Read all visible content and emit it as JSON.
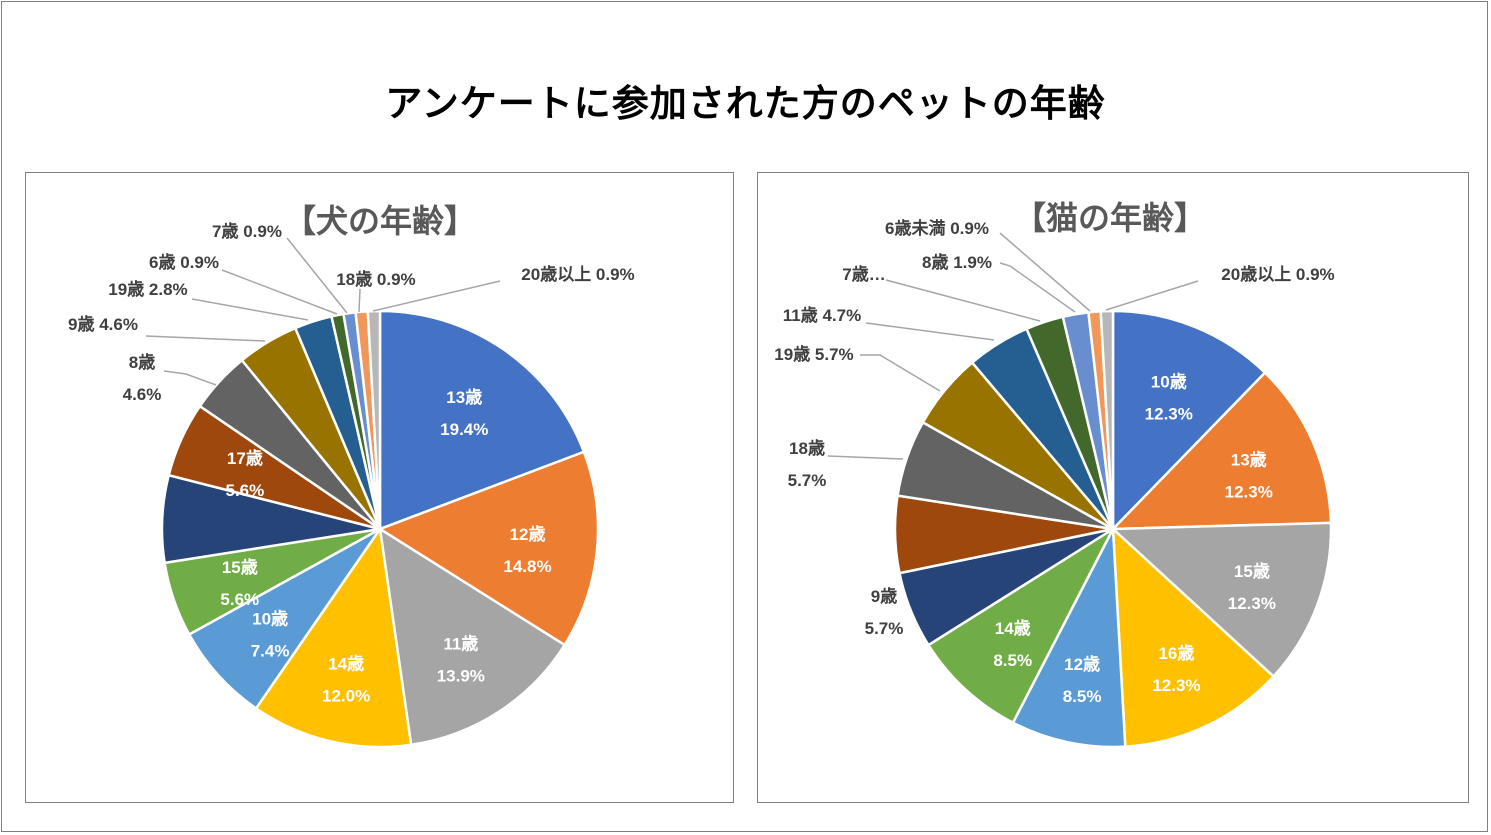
{
  "title": "アンケートに参加された方のペットの年齢",
  "chart_data": [
    {
      "type": "pie",
      "title": "【犬の年齢】",
      "slices": [
        {
          "label": "13歳",
          "value": 19.4,
          "value_label": "19.4%",
          "color": "#4472C4"
        },
        {
          "label": "12歳",
          "value": 14.8,
          "value_label": "14.8%",
          "color": "#ED7D31"
        },
        {
          "label": "11歳",
          "value": 13.9,
          "value_label": "13.9%",
          "color": "#A5A5A5"
        },
        {
          "label": "14歳",
          "value": 12.0,
          "value_label": "12.0%",
          "color": "#FFC000"
        },
        {
          "label": "10歳",
          "value": 7.4,
          "value_label": "7.4%",
          "color": "#5B9BD5"
        },
        {
          "label": "15歳",
          "value": 5.6,
          "value_label": "5.6%",
          "color": "#70AD47"
        },
        {
          "label": "",
          "value": 6.5,
          "value_label": "",
          "color": "#264478"
        },
        {
          "label": "17歳",
          "value": 5.6,
          "value_label": "5.6%",
          "color": "#9E480E"
        },
        {
          "label": "8歳",
          "value": 4.6,
          "value_label": "4.6%",
          "color": "#636363"
        },
        {
          "label": "9歳",
          "value": 4.6,
          "value_label": "4.6%",
          "color": "#997300"
        },
        {
          "label": "19歳",
          "value": 2.8,
          "value_label": "2.8%",
          "color": "#255E91"
        },
        {
          "label": "6歳",
          "value": 0.9,
          "value_label": "0.9%",
          "color": "#43682B"
        },
        {
          "label": "7歳",
          "value": 0.9,
          "value_label": "0.9%",
          "color": "#698ED0"
        },
        {
          "label": "18歳",
          "value": 0.9,
          "value_label": "0.9%",
          "color": "#F1975A"
        },
        {
          "label": "20歳以上",
          "value": 0.9,
          "value_label": "0.9%",
          "color": "#B7B7B7"
        }
      ]
    },
    {
      "type": "pie",
      "title": "【猫の年齢】",
      "slices": [
        {
          "label": "10歳",
          "value": 12.3,
          "value_label": "12.3%",
          "color": "#4472C4"
        },
        {
          "label": "13歳",
          "value": 12.3,
          "value_label": "12.3%",
          "color": "#ED7D31"
        },
        {
          "label": "15歳",
          "value": 12.3,
          "value_label": "12.3%",
          "color": "#A5A5A5"
        },
        {
          "label": "16歳",
          "value": 12.3,
          "value_label": "12.3%",
          "color": "#FFC000"
        },
        {
          "label": "12歳",
          "value": 8.5,
          "value_label": "8.5%",
          "color": "#5B9BD5"
        },
        {
          "label": "14歳",
          "value": 8.5,
          "value_label": "8.5%",
          "color": "#70AD47"
        },
        {
          "label": "9歳",
          "value": 5.7,
          "value_label": "5.7%",
          "color": "#264478"
        },
        {
          "label": "",
          "value": 5.7,
          "value_label": "",
          "color": "#9E480E"
        },
        {
          "label": "18歳",
          "value": 5.7,
          "value_label": "5.7%",
          "color": "#636363"
        },
        {
          "label": "19歳",
          "value": 5.7,
          "value_label": "5.7%",
          "color": "#997300"
        },
        {
          "label": "11歳",
          "value": 4.7,
          "value_label": "4.7%",
          "color": "#255E91"
        },
        {
          "label": "7歳…",
          "value": 2.8,
          "value_label": "",
          "color": "#43682B"
        },
        {
          "label": "8歳",
          "value": 1.9,
          "value_label": "1.9%",
          "color": "#698ED0"
        },
        {
          "label": "6歳未満",
          "value": 0.9,
          "value_label": "0.9%",
          "color": "#F1975A"
        },
        {
          "label": "20歳以上",
          "value": 0.9,
          "value_label": "0.9%",
          "color": "#B7B7B7"
        }
      ]
    }
  ]
}
